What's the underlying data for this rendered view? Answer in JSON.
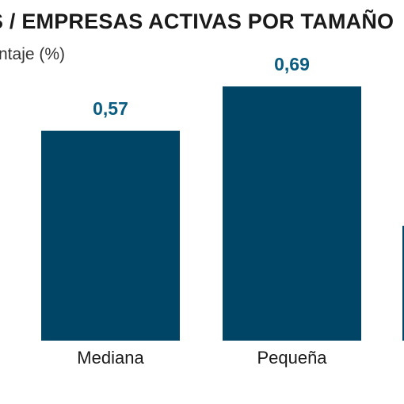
{
  "chart_data": {
    "type": "bar",
    "title": "S / EMPRESAS ACTIVAS POR TAMAÑO",
    "subtitle": "ntaje (%)",
    "categories": [
      "Mediana",
      "Pequeña",
      ""
    ],
    "values": [
      0.57,
      0.69,
      null
    ],
    "value_labels": [
      "0,57",
      "0,69",
      ""
    ],
    "bar_color": "#004566",
    "label_color": "#0a5c80",
    "baseline": 0,
    "xlabel": "",
    "ylabel": "",
    "grid": false
  }
}
